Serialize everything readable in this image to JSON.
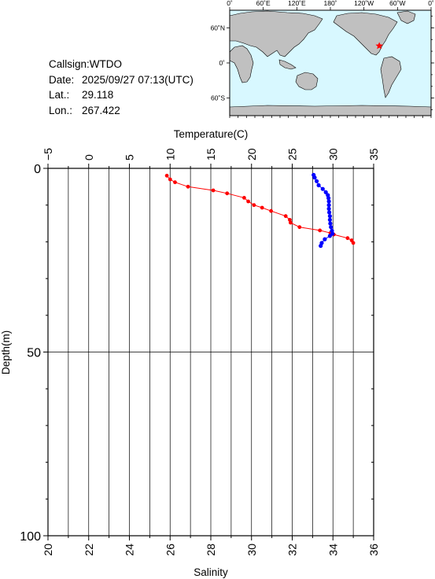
{
  "info": {
    "callsign_label": "Callsign:",
    "callsign": "WTDO",
    "date_label": "Date:",
    "date": "2025/09/27 07:13(UTC)",
    "lat_label": "Lat.:",
    "lat": "29.118",
    "lon_label": "Lon.:",
    "lon": "267.422"
  },
  "map": {
    "top_ticks": [
      "0˚",
      "60˚E",
      "120˚E",
      "180˚",
      "120˚W",
      "60˚W",
      "0˚"
    ],
    "left_ticks": [
      "60˚N",
      "0˚",
      "60˚S"
    ],
    "marker_lat": 29.118,
    "marker_lon": 267.422,
    "ocean_color": "#d8f8ff",
    "land_color": "#c0c0c0",
    "marker_color": "#ff0000"
  },
  "chart_data": {
    "type": "scatter",
    "ylabel": "Depth(m)",
    "xlabel_top": "Temperature(C)",
    "xlabel_bottom": "Salinity",
    "ylim": [
      100,
      0
    ],
    "temperature_lim": [
      -5,
      35
    ],
    "salinity_lim": [
      20,
      36
    ],
    "temperature_ticks": [
      "−5",
      "0",
      "5",
      "10",
      "15",
      "20",
      "25",
      "30",
      "35"
    ],
    "salinity_ticks": [
      "20",
      "22",
      "24",
      "26",
      "28",
      "30",
      "32",
      "34",
      "36"
    ],
    "depth_ticks": [
      "0",
      "50",
      "100"
    ],
    "series": [
      {
        "color": "#ff0000",
        "depth": [
          2,
          3,
          3.8,
          5,
          6,
          6.8,
          8,
          9,
          10,
          10.7,
          11.6,
          13,
          14,
          14.8,
          16,
          16.9,
          17.6,
          18,
          19,
          19.6,
          20.3
        ],
        "temperature": [
          9.6,
          10.0,
          10.6,
          12.2,
          15.3,
          17.0,
          19.1,
          19.6,
          20.3,
          21.3,
          22.4,
          24.2,
          24.7,
          24.8,
          25.9,
          28.4,
          29.7,
          30.1,
          31.8,
          32.3,
          32.5
        ]
      },
      {
        "color": "#0000ff",
        "depth": [
          1.8,
          2.5,
          3.5,
          4.6,
          5.6,
          6.5,
          7.3,
          8.1,
          9,
          10,
          11,
          12,
          13,
          14,
          15,
          16,
          17,
          17.8,
          18.4,
          19.3,
          20.3,
          21.1
        ],
        "salinity": [
          33.05,
          33.1,
          33.2,
          33.3,
          33.5,
          33.65,
          33.75,
          33.78,
          33.8,
          33.8,
          33.8,
          33.82,
          33.85,
          33.85,
          33.87,
          33.9,
          33.95,
          33.98,
          33.85,
          33.6,
          33.45,
          33.4
        ]
      }
    ],
    "grid": true
  }
}
